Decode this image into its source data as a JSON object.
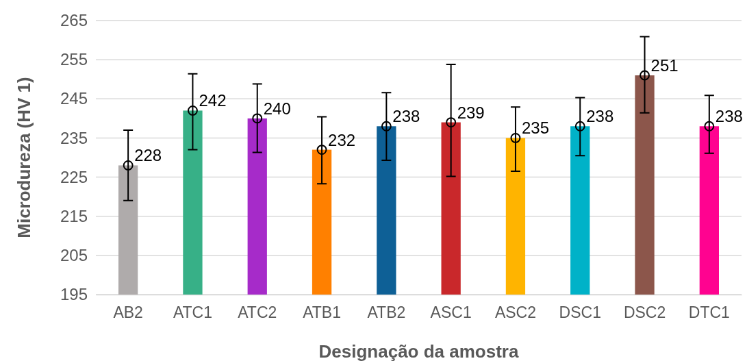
{
  "chart_data": {
    "type": "bar",
    "xlabel": "Designação da amostra",
    "ylabel": "Microdureza (HV 1)",
    "categories": [
      "AB2",
      "ATC1",
      "ATC2",
      "ATB1",
      "ATB2",
      "ASC1",
      "ASC2",
      "DSC1",
      "DSC2",
      "DTC1"
    ],
    "series": [
      {
        "values": [
          228,
          242,
          240,
          232,
          238,
          239,
          235,
          238,
          251,
          238
        ],
        "value_labels": [
          "228",
          "242",
          "240",
          "232",
          "238",
          "239",
          "235",
          "238",
          "251",
          "238"
        ],
        "colors": [
          "#afabab",
          "#37b087",
          "#a62bc9",
          "#ff8000",
          "#0e6096",
          "#c9282b",
          "#ffb400",
          "#00b2c8",
          "#8c564b",
          "#ff0390"
        ]
      },
      {
        "type": "scatter",
        "values": [
          228,
          242,
          240,
          232,
          238,
          239,
          235,
          238,
          251,
          238
        ],
        "color": "#000000",
        "marker": "circle",
        "errors": [
          [
            219,
            237
          ],
          [
            232,
            251.4
          ],
          [
            231.3,
            248.8
          ],
          [
            223.3,
            240.4
          ],
          [
            229.3,
            246.6
          ],
          [
            225.2,
            253.8
          ],
          [
            226.5,
            242.9
          ],
          [
            230.5,
            245.3
          ],
          [
            241.4,
            260.9
          ],
          [
            231.1,
            245.9
          ]
        ]
      }
    ],
    "ylim": [
      195,
      265
    ],
    "yticks": [
      195,
      205,
      215,
      225,
      235,
      245,
      255,
      265
    ],
    "grid": "y"
  }
}
